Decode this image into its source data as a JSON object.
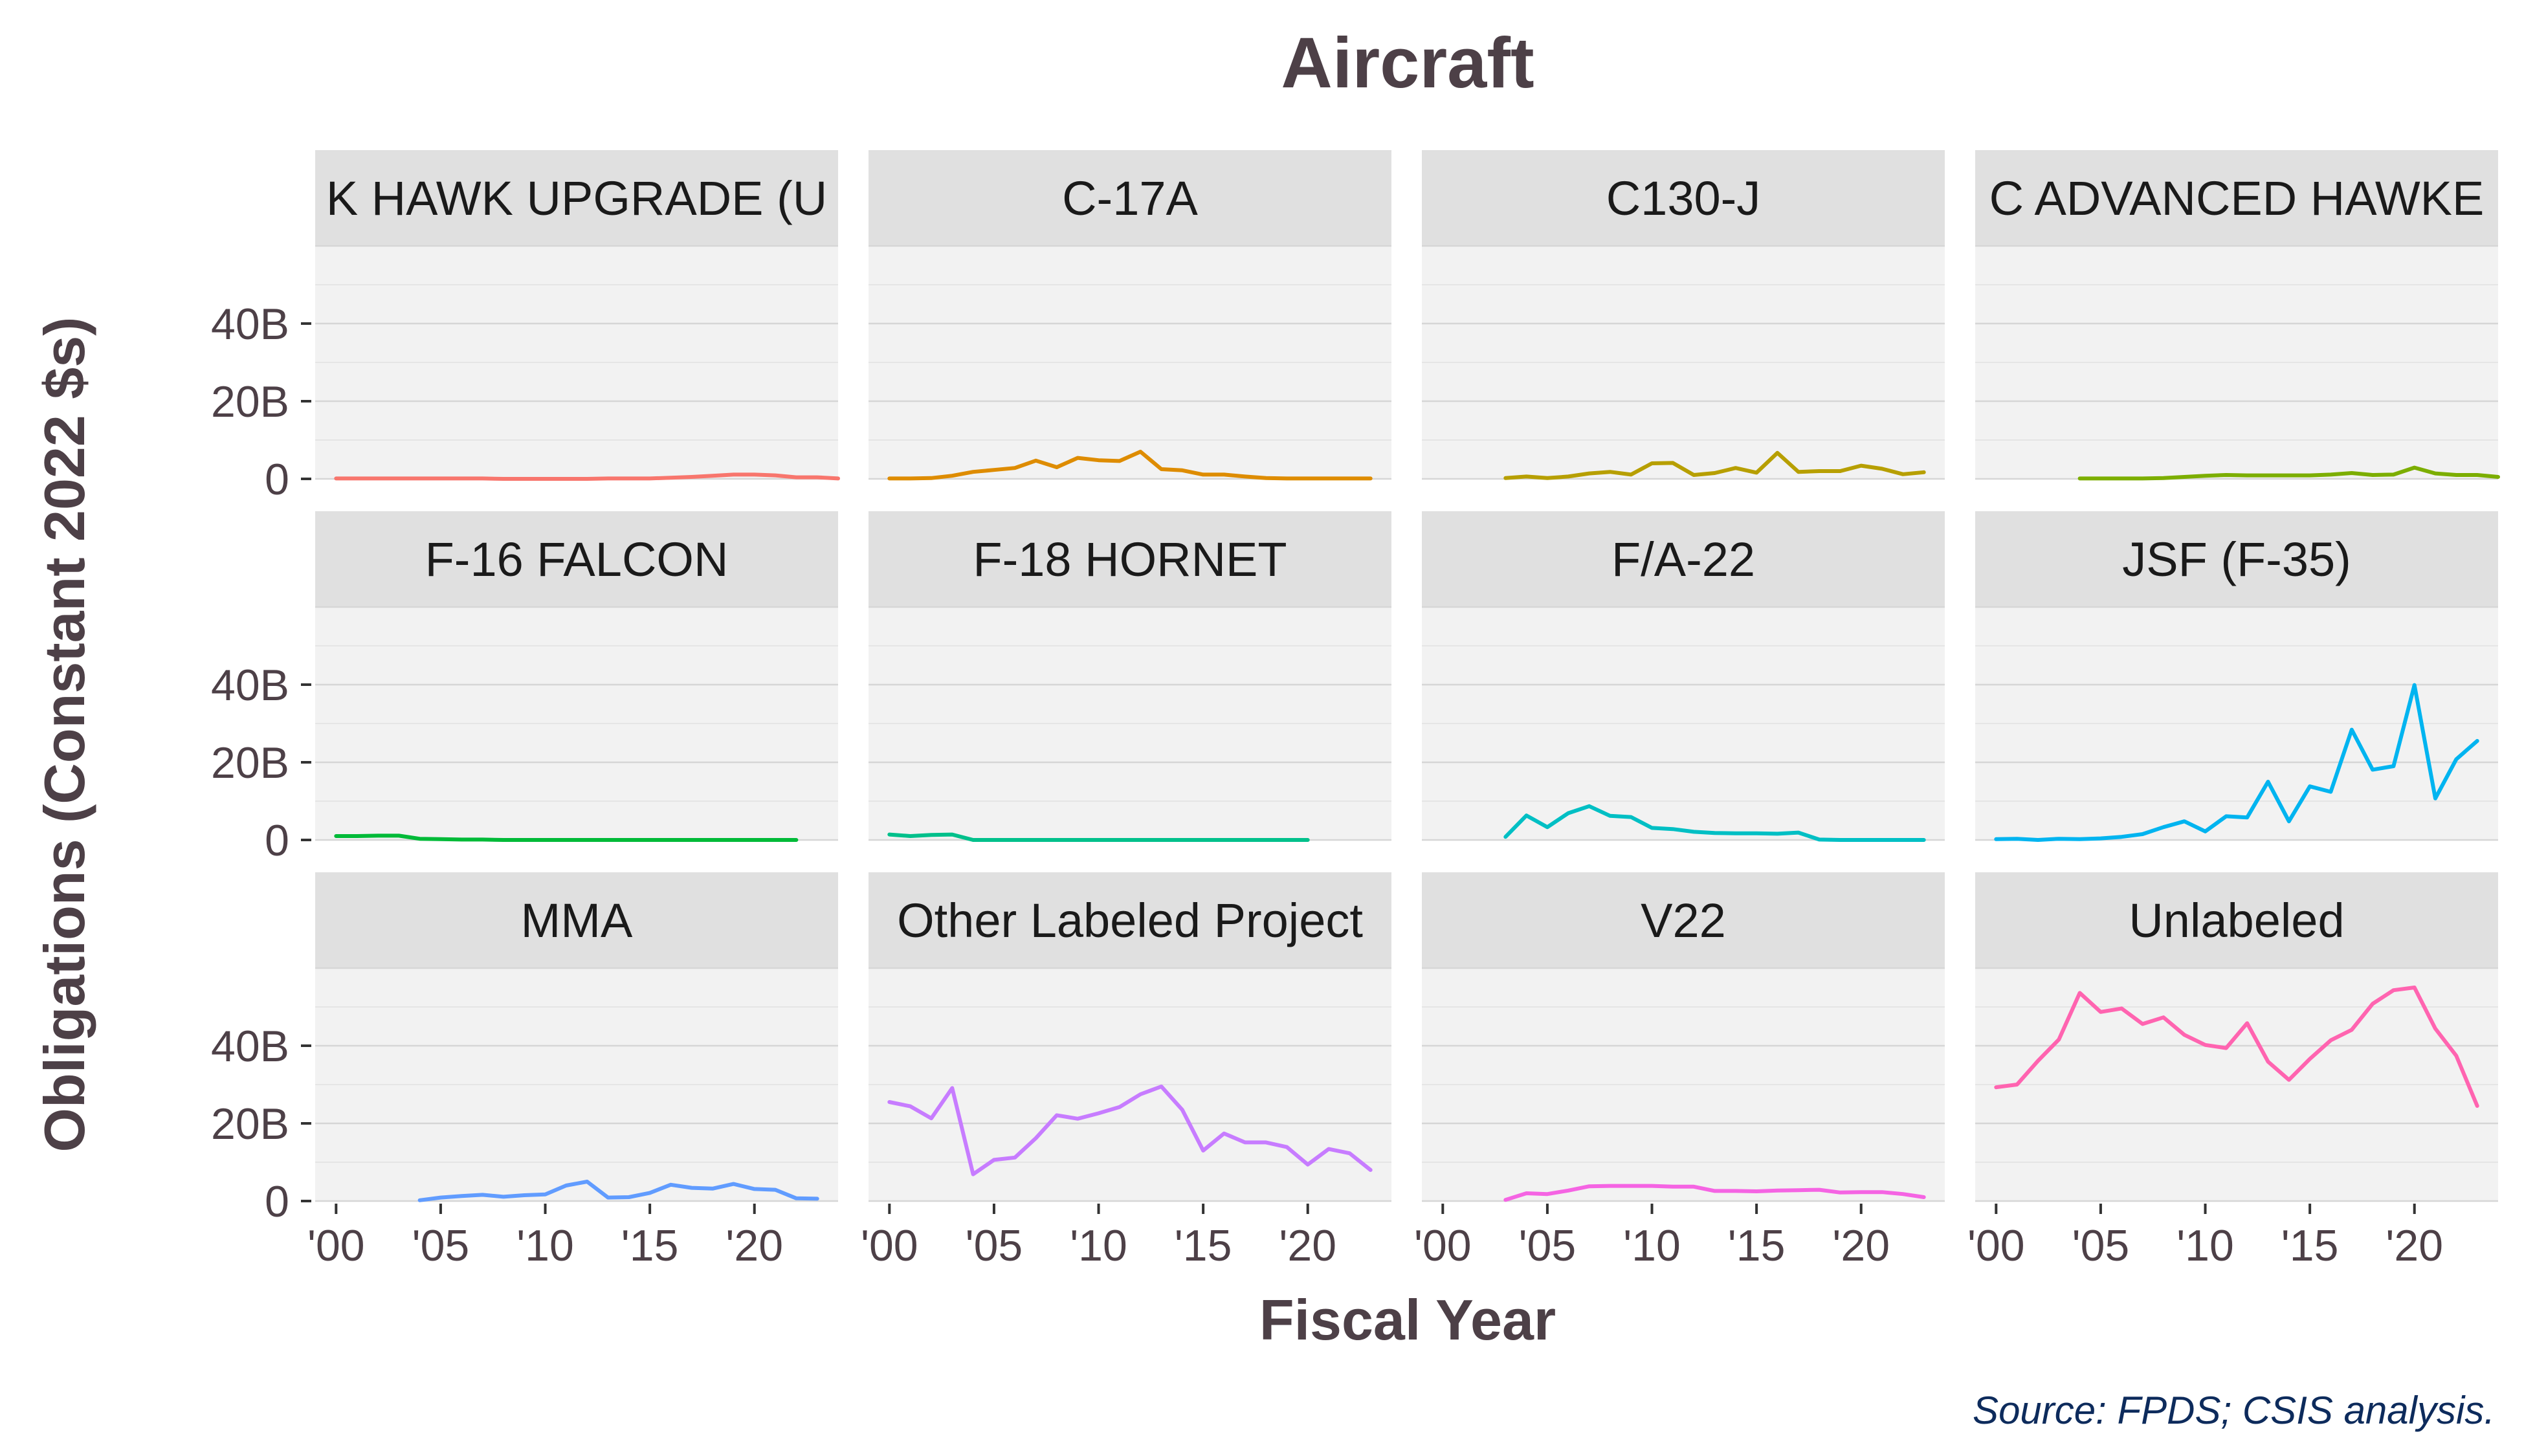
{
  "chart_data": {
    "type": "line",
    "title": "Aircraft",
    "xlabel": "Fiscal Year",
    "ylabel": "Obligations (Constant 2022 $s)",
    "source": "Source: FPDS; CSIS analysis.",
    "xlim": [
      1999,
      2024
    ],
    "ylim": [
      0,
      60
    ],
    "x_ticks": [
      2000,
      2005,
      2010,
      2015,
      2020
    ],
    "x_tick_labels": [
      "'00",
      "'05",
      "'10",
      "'15",
      "'20"
    ],
    "y_ticks": [
      0,
      20,
      40
    ],
    "y_tick_labels": [
      "0",
      "20B",
      "40B"
    ],
    "grid": true,
    "legend": "none",
    "panels": [
      {
        "label": "K HAWK UPGRADE (U",
        "color": "#F8766D",
        "x0": 2000,
        "values": [
          0.1,
          0.1,
          0.1,
          0.1,
          0.1,
          0.1,
          0.1,
          0.1,
          0.0,
          0.0,
          0.0,
          0.0,
          0.0,
          0.1,
          0.1,
          0.1,
          0.3,
          0.5,
          0.8,
          1.1,
          1.1,
          0.9,
          0.4,
          0.4,
          0.1
        ]
      },
      {
        "label": "C-17A",
        "color": "#DE8C00",
        "x0": 2000,
        "values": [
          0.1,
          0.1,
          0.2,
          0.8,
          1.8,
          2.3,
          2.8,
          4.7,
          3.0,
          5.4,
          4.8,
          4.6,
          7.0,
          2.5,
          2.2,
          1.1,
          1.1,
          0.6,
          0.2,
          0.1,
          0.1,
          0.1,
          0.1,
          0.1
        ]
      },
      {
        "label": "C130-J",
        "color": "#B79F00",
        "x0": 2003,
        "values": [
          0.2,
          0.6,
          0.2,
          0.6,
          1.4,
          1.8,
          1.1,
          4.0,
          4.1,
          1.0,
          1.5,
          2.8,
          1.6,
          6.7,
          1.8,
          2.0,
          2.0,
          3.4,
          2.6,
          1.2,
          1.7
        ]
      },
      {
        "label": "C ADVANCED HAWKE",
        "color": "#7CAE00",
        "x0": 2004,
        "values": [
          0.1,
          0.1,
          0.1,
          0.1,
          0.2,
          0.5,
          0.8,
          1.0,
          0.9,
          0.9,
          0.9,
          0.9,
          1.1,
          1.5,
          1.0,
          1.1,
          2.9,
          1.4,
          1.0,
          1.0,
          0.5
        ]
      },
      {
        "label": "F-16 FALCON",
        "color": "#00BA38",
        "x0": 2000,
        "values": [
          1.0,
          1.0,
          1.1,
          1.1,
          0.3,
          0.2,
          0.1,
          0.1,
          0.0,
          0.0,
          0.0,
          0.0,
          0.0,
          0.0,
          0.0,
          0.0,
          0.0,
          0.0,
          0.0,
          0.0,
          0.0,
          0.0,
          0.0
        ]
      },
      {
        "label": "F-18 HORNET",
        "color": "#00C08B",
        "x0": 2000,
        "values": [
          1.4,
          1.0,
          1.3,
          1.4,
          0.0,
          0.0,
          0.0,
          0.0,
          0.0,
          0.0,
          0.0,
          0.0,
          0.0,
          0.0,
          0.0,
          0.0,
          0.0,
          0.0,
          0.0,
          0.0,
          0.0
        ]
      },
      {
        "label": "F/A-22",
        "color": "#00BFC4",
        "x0": 2003,
        "values": [
          0.8,
          6.3,
          3.3,
          6.9,
          8.7,
          6.2,
          5.9,
          3.1,
          2.8,
          2.1,
          1.8,
          1.7,
          1.7,
          1.6,
          1.9,
          0.1,
          0.0,
          0.0,
          0.0,
          0.0,
          0.0
        ]
      },
      {
        "label": "JSF (F-35)",
        "color": "#00B4F0",
        "x0": 2000,
        "values": [
          0.2,
          0.3,
          0.0,
          0.3,
          0.2,
          0.4,
          0.8,
          1.5,
          3.3,
          4.8,
          2.2,
          6.1,
          5.8,
          15.0,
          4.8,
          13.8,
          12.4,
          28.4,
          18.1,
          19.0,
          39.9,
          10.7,
          20.8,
          25.5
        ]
      },
      {
        "label": "MMA",
        "color": "#619CFF",
        "x0": 2004,
        "values": [
          0.2,
          0.9,
          1.3,
          1.6,
          1.1,
          1.5,
          1.7,
          4.0,
          5.0,
          0.9,
          1.0,
          2.1,
          4.2,
          3.4,
          3.2,
          4.4,
          3.1,
          2.9,
          0.7,
          0.6
        ]
      },
      {
        "label": "Other Labeled Project",
        "color": "#C77CFF",
        "x0": 2000,
        "values": [
          25.5,
          24.4,
          21.3,
          29.1,
          6.9,
          10.6,
          11.2,
          16.2,
          22.1,
          21.2,
          22.6,
          24.2,
          27.5,
          29.5,
          23.5,
          13.0,
          17.4,
          15.1,
          15.1,
          13.9,
          9.4,
          13.4,
          12.3,
          8.0
        ]
      },
      {
        "label": "V22",
        "color": "#F564E3",
        "x0": 2003,
        "values": [
          0.3,
          2.0,
          1.8,
          2.7,
          3.8,
          3.9,
          3.9,
          3.9,
          3.7,
          3.7,
          2.6,
          2.6,
          2.5,
          2.7,
          2.8,
          2.9,
          2.2,
          2.3,
          2.3,
          1.8,
          1.0
        ]
      },
      {
        "label": "Unlabeled",
        "color": "#FF64B0",
        "x0": 2000,
        "values": [
          29.3,
          30.0,
          36.1,
          41.6,
          53.6,
          48.7,
          49.6,
          45.6,
          47.3,
          42.8,
          40.2,
          39.4,
          45.8,
          35.9,
          31.2,
          36.6,
          41.4,
          44.1,
          50.8,
          54.3,
          55.0,
          44.4,
          37.4,
          24.5
        ]
      }
    ]
  }
}
